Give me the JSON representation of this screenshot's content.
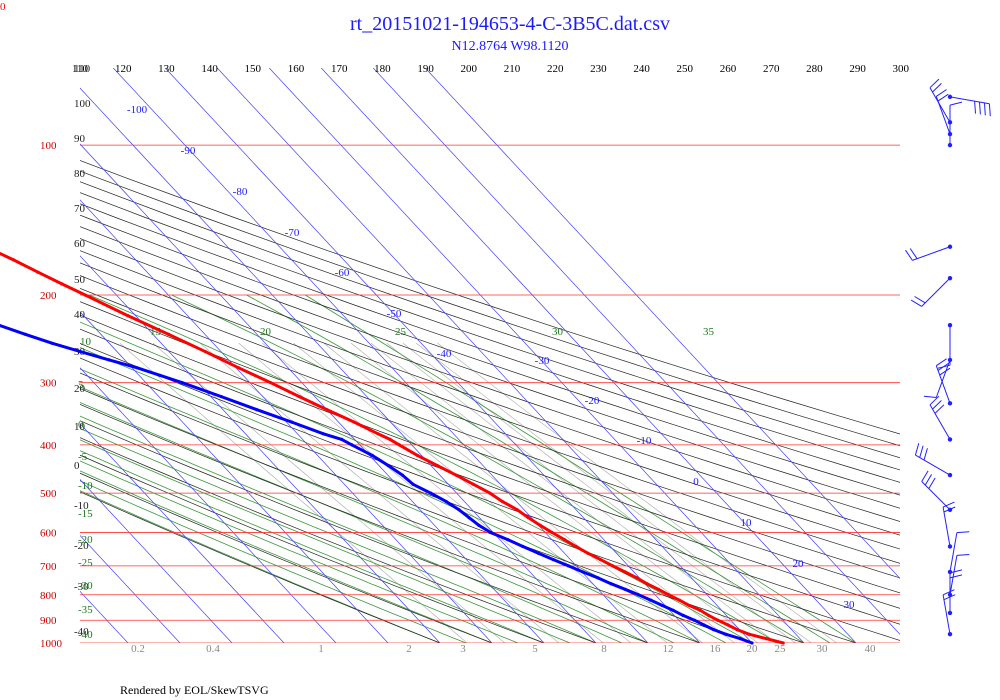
{
  "header": {
    "title": "rt_20151021-194653-4-C-3B5C.dat.csv",
    "subtitle": "N12.8764 W98.1120",
    "corner_label": "0"
  },
  "footer": {
    "credit": "Rendered by EOL/SkewTSVG"
  },
  "chart_data": {
    "type": "skew-t",
    "x_axis_ticks": [
      110,
      120,
      130,
      140,
      150,
      160,
      170,
      180,
      190,
      200,
      210,
      220,
      230,
      240,
      250,
      260,
      270,
      280,
      290,
      300
    ],
    "pressure_labels": [
      100,
      200,
      300,
      400,
      500,
      600,
      700,
      800,
      900,
      1000
    ],
    "isotherm_labels": [
      -100,
      -90,
      -80,
      -70,
      -60,
      -50,
      -40,
      -30,
      -20,
      -10,
      0,
      10,
      20,
      30
    ],
    "dry_adiabat_labels": [
      110,
      100,
      90,
      80,
      70,
      60,
      50,
      40,
      30,
      20,
      10,
      0,
      -10,
      -20,
      -30,
      -40
    ],
    "moist_adiabat_labels": [
      15,
      20,
      25,
      30,
      35,
      10,
      5,
      0,
      -5,
      -10,
      -15,
      -20,
      -25,
      -30,
      -35,
      -40
    ],
    "mixing_ratio_labels": [
      "0.2",
      "0.4",
      "1",
      "2",
      "3",
      "5",
      "8",
      "12",
      "16",
      "20",
      "25",
      "30",
      "40"
    ],
    "series": [
      {
        "name": "",
        "color": "#ff0000",
        "points": [
          [
            1000,
            26
          ],
          [
            980,
            23.5
          ],
          [
            960,
            21
          ],
          [
            940,
            19.5
          ],
          [
            920,
            18.6
          ],
          [
            900,
            17.5
          ],
          [
            880,
            16.6
          ],
          [
            860,
            15.9
          ],
          [
            840,
            14.6
          ],
          [
            820,
            13.7
          ],
          [
            800,
            12.6
          ],
          [
            780,
            11.6
          ],
          [
            760,
            10.4
          ],
          [
            740,
            9.5
          ],
          [
            720,
            8.3
          ],
          [
            700,
            7.0
          ],
          [
            680,
            5.8
          ],
          [
            660,
            4.5
          ],
          [
            640,
            3.4
          ],
          [
            620,
            2.4
          ],
          [
            600,
            1.3
          ],
          [
            580,
            0.3
          ],
          [
            560,
            -0.6
          ],
          [
            540,
            -1.3
          ],
          [
            520,
            -2.7
          ],
          [
            500,
            -3.6
          ],
          [
            480,
            -5.2
          ],
          [
            460,
            -6.9
          ],
          [
            440,
            -8.8
          ],
          [
            420,
            -10.8
          ],
          [
            400,
            -12.4
          ],
          [
            390,
            -13.2
          ],
          [
            380,
            -14.5
          ],
          [
            360,
            -17
          ],
          [
            340,
            -20
          ],
          [
            320,
            -23
          ],
          [
            300,
            -26
          ],
          [
            280,
            -29.5
          ],
          [
            260,
            -33
          ],
          [
            240,
            -37
          ],
          [
            220,
            -41.5
          ],
          [
            200,
            -46
          ],
          [
            190,
            -48.5
          ],
          [
            180,
            -51
          ],
          [
            170,
            -53.5
          ],
          [
            160,
            -56.5
          ],
          [
            150,
            -59.5
          ],
          [
            140,
            -62.5
          ],
          [
            130,
            -66
          ],
          [
            120,
            -70
          ],
          [
            110,
            -74
          ],
          [
            104,
            -77
          ],
          [
            100,
            -79
          ],
          [
            98,
            -79
          ],
          [
            96,
            -78
          ],
          [
            94,
            -76.5
          ],
          [
            92,
            -74
          ],
          [
            90,
            -72
          ],
          [
            88,
            -69
          ],
          [
            86,
            -66
          ],
          [
            84,
            -63
          ],
          [
            82,
            -60
          ],
          [
            80,
            -57
          ],
          [
            78,
            -55
          ],
          [
            76,
            -54
          ],
          [
            74,
            -53
          ],
          [
            72,
            -51
          ],
          [
            70,
            -49.5
          ]
        ]
      },
      {
        "name": "",
        "color": "#0000ff",
        "points": [
          [
            1000,
            20
          ],
          [
            980,
            18.5
          ],
          [
            960,
            16.5
          ],
          [
            940,
            15
          ],
          [
            920,
            14
          ],
          [
            900,
            13
          ],
          [
            880,
            11.7
          ],
          [
            860,
            10.7
          ],
          [
            840,
            9.4
          ],
          [
            820,
            8.2
          ],
          [
            800,
            6.8
          ],
          [
            780,
            5.2
          ],
          [
            760,
            3.5
          ],
          [
            740,
            2.0
          ],
          [
            720,
            0.2
          ],
          [
            700,
            -1.5
          ],
          [
            680,
            -3.3
          ],
          [
            660,
            -5.0
          ],
          [
            640,
            -6.8
          ],
          [
            620,
            -8.5
          ],
          [
            600,
            -10.5
          ],
          [
            580,
            -11.5
          ],
          [
            560,
            -12
          ],
          [
            540,
            -12.5
          ],
          [
            520,
            -13.5
          ],
          [
            500,
            -15
          ],
          [
            480,
            -16.8
          ],
          [
            460,
            -17.2
          ],
          [
            440,
            -18.2
          ],
          [
            420,
            -19.5
          ],
          [
            400,
            -21.5
          ],
          [
            390,
            -22.5
          ],
          [
            380,
            -25
          ],
          [
            360,
            -29
          ],
          [
            340,
            -33.5
          ],
          [
            320,
            -38
          ],
          [
            300,
            -43
          ],
          [
            290,
            -46
          ],
          [
            280,
            -49
          ],
          [
            270,
            -53
          ],
          [
            260,
            -57
          ],
          [
            250,
            -61
          ],
          [
            240,
            -64.5
          ],
          [
            230,
            -68
          ],
          [
            220,
            -71.5
          ],
          [
            210,
            -75
          ],
          [
            200,
            -78.5
          ],
          [
            190,
            -82.5
          ],
          [
            180,
            -86.5
          ],
          [
            170,
            -91
          ],
          [
            160,
            -95.5
          ],
          [
            150,
            -100.5
          ]
        ]
      }
    ],
    "wind_barbs": [
      {
        "p": 80,
        "dir": 100,
        "speed": 35
      },
      {
        "p": 90,
        "dir": 330,
        "speed": 15
      },
      {
        "p": 95,
        "dir": 340,
        "speed": 15
      },
      {
        "p": 100,
        "dir": 0,
        "speed": 10
      },
      {
        "p": 160,
        "dir": 250,
        "speed": 15
      },
      {
        "p": 185,
        "dir": 225,
        "speed": 15
      },
      {
        "p": 230,
        "dir": 180,
        "speed": 10
      },
      {
        "p": 270,
        "dir": 200,
        "speed": 5
      },
      {
        "p": 330,
        "dir": 340,
        "speed": 25
      },
      {
        "p": 390,
        "dir": 330,
        "speed": 25
      },
      {
        "p": 460,
        "dir": 300,
        "speed": 25
      },
      {
        "p": 540,
        "dir": 315,
        "speed": 25
      },
      {
        "p": 640,
        "dir": 350,
        "speed": 15
      },
      {
        "p": 720,
        "dir": 10,
        "speed": 10
      },
      {
        "p": 800,
        "dir": 10,
        "speed": 10
      },
      {
        "p": 870,
        "dir": 0,
        "speed": 15
      },
      {
        "p": 960,
        "dir": 350,
        "speed": 20
      }
    ]
  }
}
